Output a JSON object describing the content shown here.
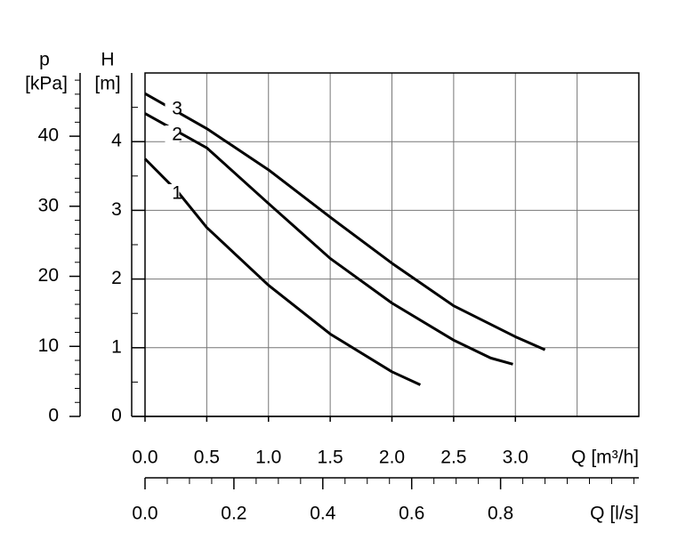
{
  "chart_data": {
    "type": "line",
    "y2label": "p",
    "y2label_unit": "[kPa]",
    "ylabel": "H",
    "ylabel_unit": "[m]",
    "xlabel": "Q [m³/h]",
    "x2label": "Q [l/s]",
    "series": [
      {
        "name": "1",
        "color": "#000000",
        "x": [
          0,
          0.27,
          0.5,
          1.0,
          1.5,
          2.0,
          2.23
        ],
        "values": [
          3.75,
          3.26,
          2.75,
          1.91,
          1.2,
          0.65,
          0.46
        ]
      },
      {
        "name": "2",
        "color": "#000000",
        "x": [
          0,
          0.5,
          1.0,
          1.5,
          2.0,
          2.5,
          2.8,
          2.98
        ],
        "values": [
          4.41,
          3.91,
          3.1,
          2.3,
          1.65,
          1.11,
          0.85,
          0.76
        ]
      },
      {
        "name": "3",
        "color": "#000000",
        "x": [
          0,
          0.5,
          1.0,
          1.5,
          2.0,
          2.5,
          3.0,
          3.24
        ],
        "values": [
          4.7,
          4.19,
          3.59,
          2.9,
          2.23,
          1.61,
          1.16,
          0.97
        ]
      }
    ],
    "xlim": [
      0,
      4
    ],
    "xticks": [
      {
        "value": 0,
        "label": "0.0"
      },
      {
        "value": 0.5,
        "label": "0.5"
      },
      {
        "value": 1,
        "label": "1.0"
      },
      {
        "value": 1.5,
        "label": "1.5"
      },
      {
        "value": 2,
        "label": "2.0"
      },
      {
        "value": 2.5,
        "label": "2.5"
      },
      {
        "value": 3,
        "label": "3.0"
      }
    ],
    "xgrid": [
      0.5,
      1,
      1.5,
      2,
      2.5,
      3,
      3.5
    ],
    "ylim": [
      0,
      5
    ],
    "yticks": [
      0,
      1,
      2,
      3,
      4
    ],
    "yminor": [
      0.5,
      1.5,
      2.5,
      3.5,
      4.5
    ],
    "y2lim": [
      0,
      49.03
    ],
    "y2ticks": [
      0,
      10,
      20,
      30,
      40
    ],
    "y2minor": [
      2,
      4,
      6,
      8,
      12,
      14,
      16,
      18,
      22,
      24,
      26,
      28,
      32,
      34,
      36,
      38,
      42,
      44,
      46,
      48
    ],
    "x2lim": [
      0,
      1.1111
    ],
    "x2ticks": [
      {
        "value": 0,
        "label": "0.0"
      },
      {
        "value": 0.2,
        "label": "0.2"
      },
      {
        "value": 0.4,
        "label": "0.4"
      },
      {
        "value": 0.6,
        "label": "0.6"
      },
      {
        "value": 0.8,
        "label": "0.8"
      }
    ],
    "x2minor": [
      0.05,
      0.1,
      0.15,
      0.25,
      0.3,
      0.35,
      0.45,
      0.5,
      0.55,
      0.65,
      0.7,
      0.75,
      0.85,
      0.9,
      0.95,
      1.0,
      1.05,
      1.1
    ],
    "grid": true
  }
}
